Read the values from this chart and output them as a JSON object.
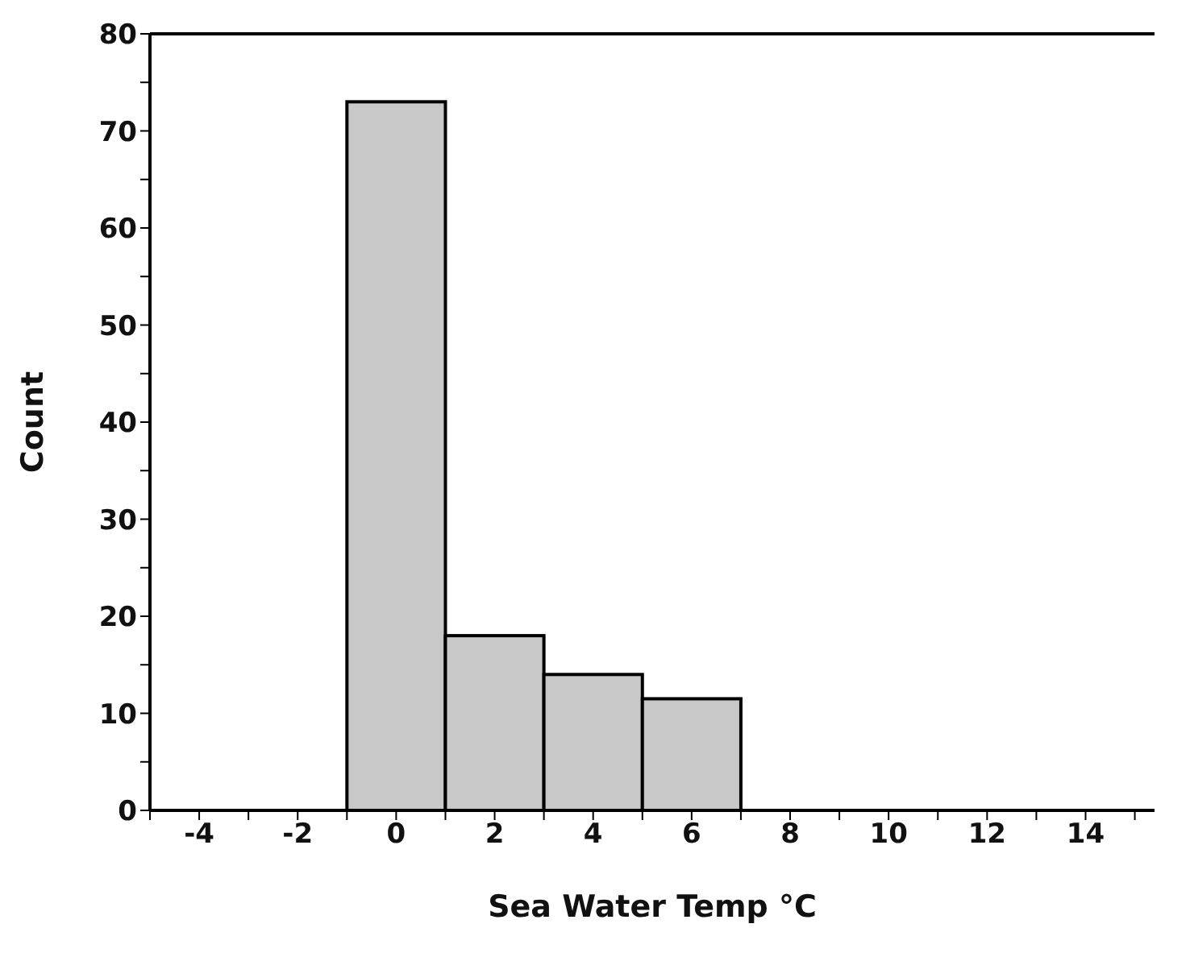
{
  "chart_data": {
    "type": "histogram",
    "xlabel": "Sea Water Temp °C",
    "ylabel": "Count",
    "bins": [
      -1,
      1,
      3,
      5,
      7
    ],
    "values": [
      73,
      18,
      14,
      11.5
    ],
    "color": "#c8c8c8",
    "xlim": [
      -5,
      15.4
    ],
    "xticks": [
      {
        "value": -5,
        "label": null
      },
      -4,
      {
        "value": -3,
        "label": null
      },
      -2,
      {
        "value": -1,
        "label": null
      },
      0,
      {
        "value": 1,
        "label": null
      },
      2,
      {
        "value": 3,
        "label": null
      },
      4,
      {
        "value": 5,
        "label": null
      },
      6,
      {
        "value": 7,
        "label": null
      },
      8,
      {
        "value": 9,
        "label": null
      },
      10,
      {
        "value": 11,
        "label": null
      },
      12,
      {
        "value": 13,
        "label": null
      },
      14,
      {
        "value": 15,
        "label": null
      }
    ],
    "ylim": [
      0,
      80
    ],
    "yticks": [
      0,
      {
        "value": 5,
        "label": null
      },
      10,
      {
        "value": 15,
        "label": null
      },
      20,
      {
        "value": 25,
        "label": null
      },
      30,
      {
        "value": 35,
        "label": null
      },
      40,
      {
        "value": 45,
        "label": null
      },
      50,
      {
        "value": 55,
        "label": null
      },
      60,
      {
        "value": 65,
        "label": null
      },
      70,
      {
        "value": 75,
        "label": null
      },
      80
    ],
    "grid": false,
    "legend": false
  }
}
